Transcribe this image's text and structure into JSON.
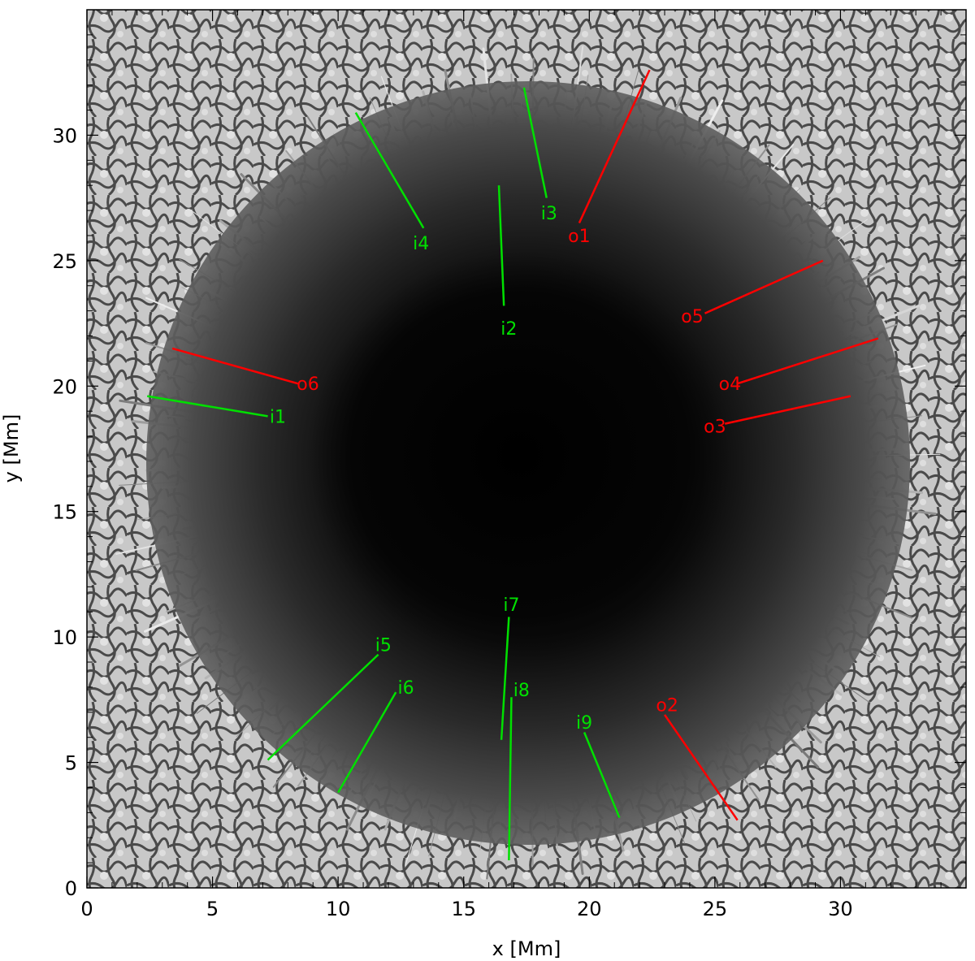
{
  "xlabel": "x [Mm]",
  "ylabel": "y [Mm]",
  "x_range": [
    0,
    35
  ],
  "y_range": [
    0,
    35
  ],
  "x_ticks": [
    0,
    5,
    10,
    15,
    20,
    25,
    30
  ],
  "y_ticks": [
    0,
    5,
    10,
    15,
    20,
    25,
    30
  ],
  "colors": {
    "outer_track": "#ff0000",
    "inner_track": "#00e000",
    "frame": "#000000"
  },
  "tracks": [
    {
      "label": "o1",
      "group": "outer",
      "x1": 19.6,
      "y1": 26.5,
      "x2": 22.4,
      "y2": 32.6,
      "lx": 19.6,
      "ly": 26.0
    },
    {
      "label": "o2",
      "group": "outer",
      "x1": 23.0,
      "y1": 6.9,
      "x2": 25.9,
      "y2": 2.7,
      "lx": 23.1,
      "ly": 7.3
    },
    {
      "label": "o3",
      "group": "outer",
      "x1": 25.4,
      "y1": 18.5,
      "x2": 30.4,
      "y2": 19.6,
      "lx": 25.0,
      "ly": 18.4
    },
    {
      "label": "o4",
      "group": "outer",
      "x1": 25.9,
      "y1": 20.1,
      "x2": 31.5,
      "y2": 21.9,
      "lx": 25.6,
      "ly": 20.1
    },
    {
      "label": "o5",
      "group": "outer",
      "x1": 24.6,
      "y1": 22.9,
      "x2": 29.3,
      "y2": 25.0,
      "lx": 24.1,
      "ly": 22.8
    },
    {
      "label": "o6",
      "group": "outer",
      "x1": 8.4,
      "y1": 20.1,
      "x2": 3.4,
      "y2": 21.5,
      "lx": 8.8,
      "ly": 20.1
    },
    {
      "label": "i1",
      "group": "inner",
      "x1": 7.2,
      "y1": 18.8,
      "x2": 2.4,
      "y2": 19.6,
      "lx": 7.6,
      "ly": 18.8
    },
    {
      "label": "i2",
      "group": "inner",
      "x1": 16.6,
      "y1": 23.2,
      "x2": 16.4,
      "y2": 28.0,
      "lx": 16.8,
      "ly": 22.3
    },
    {
      "label": "i3",
      "group": "inner",
      "x1": 18.3,
      "y1": 27.5,
      "x2": 17.4,
      "y2": 31.9,
      "lx": 18.4,
      "ly": 26.9
    },
    {
      "label": "i4",
      "group": "inner",
      "x1": 13.4,
      "y1": 26.3,
      "x2": 10.7,
      "y2": 30.9,
      "lx": 13.3,
      "ly": 25.7
    },
    {
      "label": "i5",
      "group": "inner",
      "x1": 11.6,
      "y1": 9.3,
      "x2": 7.2,
      "y2": 5.1,
      "lx": 11.8,
      "ly": 9.7
    },
    {
      "label": "i6",
      "group": "inner",
      "x1": 12.3,
      "y1": 7.8,
      "x2": 10.0,
      "y2": 3.8,
      "lx": 12.7,
      "ly": 8.0
    },
    {
      "label": "i7",
      "group": "inner",
      "x1": 16.8,
      "y1": 10.8,
      "x2": 16.5,
      "y2": 5.9,
      "lx": 16.9,
      "ly": 11.3
    },
    {
      "label": "i8",
      "group": "inner",
      "x1": 16.9,
      "y1": 7.6,
      "x2": 16.8,
      "y2": 1.1,
      "lx": 17.3,
      "ly": 7.9
    },
    {
      "label": "i9",
      "group": "inner",
      "x1": 19.8,
      "y1": 6.2,
      "x2": 21.2,
      "y2": 2.8,
      "lx": 19.8,
      "ly": 6.6
    }
  ]
}
